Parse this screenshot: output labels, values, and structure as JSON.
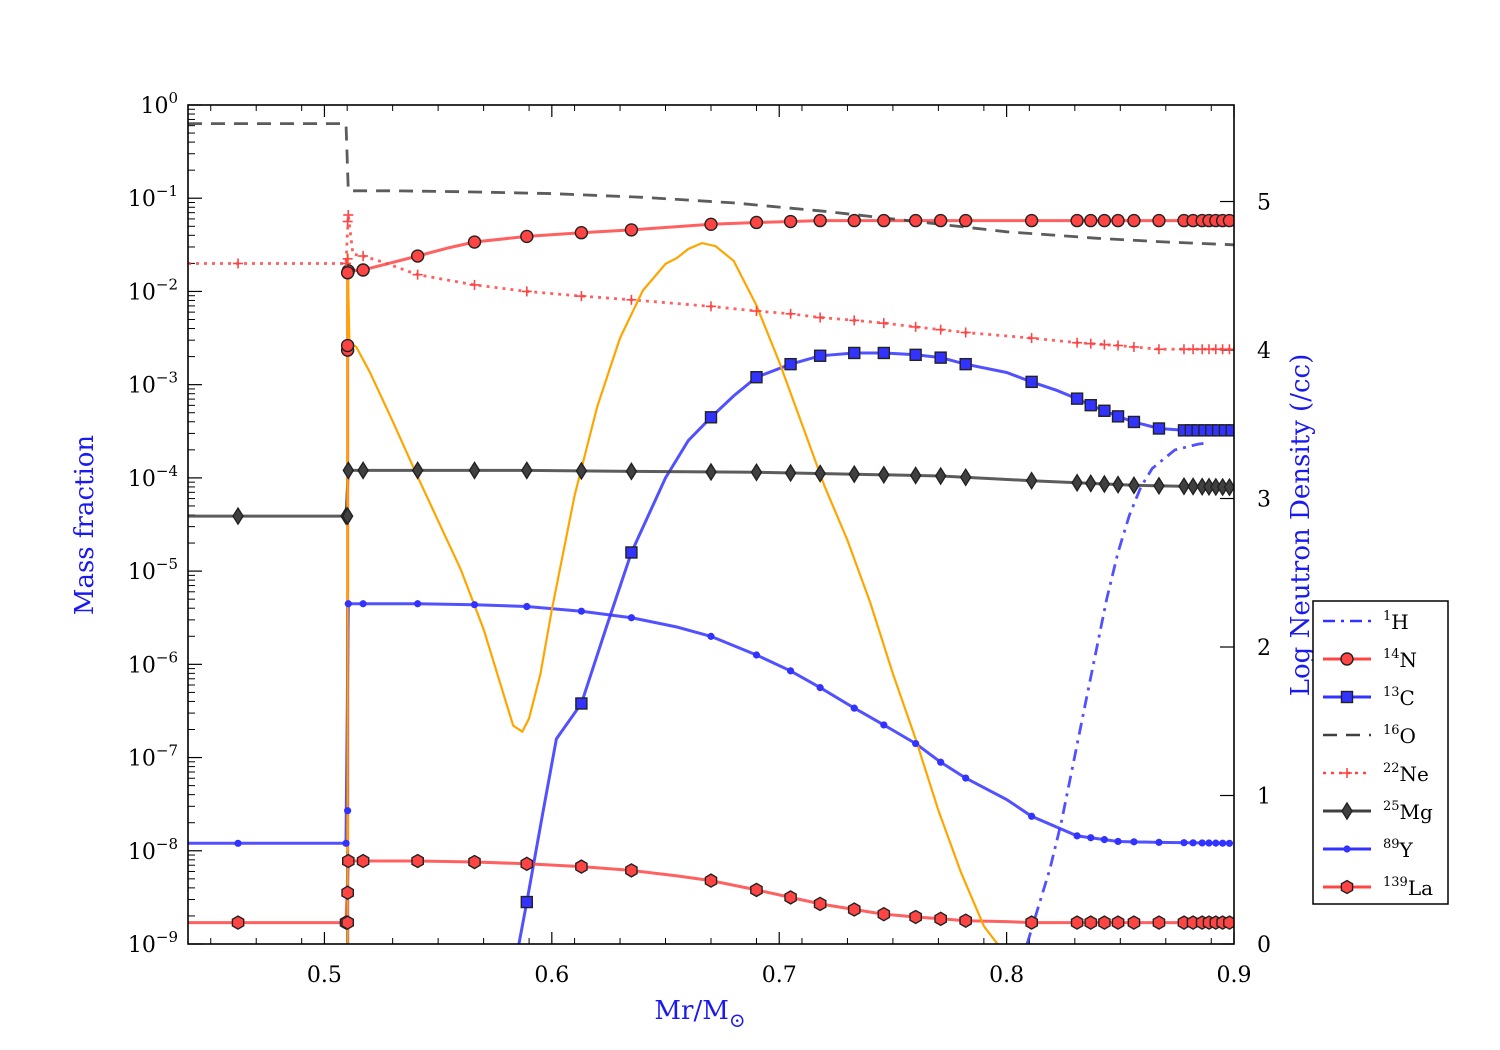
{
  "chart_data": {
    "type": "line",
    "xlabel": "Mr/M",
    "xlabel_symbol": "⊙",
    "ylabel": "Mass fraction",
    "y2label": "Log Neutron Density (/cc)",
    "xlim": [
      0.44,
      0.9
    ],
    "ylim_log10": [
      -9,
      0
    ],
    "y2lim": [
      0,
      5.65
    ],
    "x_ticks": [
      "0.5",
      "0.6",
      "0.7",
      "0.8",
      "0.9"
    ],
    "x_tick_values": [
      0.5,
      0.6,
      0.7,
      0.8,
      0.9
    ],
    "y_tick_exponents": [
      "0",
      "−1",
      "−2",
      "−3",
      "−4",
      "−5",
      "−6",
      "−7",
      "−8",
      "−9"
    ],
    "y_tick_base": "10",
    "y2_ticks": [
      "0",
      "1",
      "2",
      "3",
      "4",
      "5"
    ],
    "legend_position": "right",
    "colors": {
      "red": "#ff4444",
      "blue": "#3333ff",
      "gray": "#404040",
      "orange": "#ffa500",
      "y2label": "#1a1aee"
    },
    "series": [
      {
        "name": "1H",
        "mass": "1",
        "element": "H",
        "color": "#3333ff",
        "style": "dashdot",
        "marker": "none",
        "x": [
          0.809,
          0.814,
          0.819,
          0.824,
          0.829,
          0.834,
          0.839,
          0.844,
          0.849,
          0.854,
          0.859,
          0.864,
          0.869,
          0.874,
          0.879,
          0.884,
          0.889
        ],
        "log_y": [
          -9.0,
          -8.6,
          -8.2,
          -7.7,
          -7.1,
          -6.5,
          -5.9,
          -5.3,
          -4.8,
          -4.4,
          -4.1,
          -3.9,
          -3.8,
          -3.7,
          -3.67,
          -3.64,
          -3.62
        ]
      },
      {
        "name": "14N",
        "mass": "14",
        "element": "N",
        "color": "#ff4444",
        "style": "solid",
        "marker": "circle",
        "x": [
          0.5105,
          0.517,
          0.525,
          0.541,
          0.555,
          0.566,
          0.589,
          0.613,
          0.635,
          0.67,
          0.69,
          0.705,
          0.718,
          0.733,
          0.746,
          0.76,
          0.771,
          0.782,
          0.811,
          0.831,
          0.837,
          0.843,
          0.849,
          0.856,
          0.867,
          0.875,
          0.878,
          0.881,
          0.884,
          0.887,
          0.89,
          0.893,
          0.896,
          0.899
        ],
        "log_y": [
          -1.78,
          -1.77,
          -1.72,
          -1.62,
          -1.53,
          -1.47,
          -1.41,
          -1.37,
          -1.34,
          -1.28,
          -1.26,
          -1.25,
          -1.24,
          -1.24,
          -1.24,
          -1.24,
          -1.24,
          -1.24,
          -1.24,
          -1.24,
          -1.24,
          -1.24,
          -1.24,
          -1.24,
          -1.24,
          -1.24,
          -1.24,
          -1.24,
          -1.24,
          -1.24,
          -1.24,
          -1.24,
          -1.24,
          -1.24
        ],
        "markers_x": [
          0.5105,
          0.517,
          0.541,
          0.566,
          0.589,
          0.613,
          0.635,
          0.67,
          0.69,
          0.705,
          0.718,
          0.733,
          0.746,
          0.76,
          0.771,
          0.782,
          0.811,
          0.831,
          0.837,
          0.843,
          0.849,
          0.856,
          0.867,
          0.878,
          0.882,
          0.886,
          0.889,
          0.892,
          0.895,
          0.898
        ]
      },
      {
        "name": "13C",
        "mass": "13",
        "element": "C",
        "color": "#3333ff",
        "style": "solid",
        "marker": "square",
        "x": [
          0.5855,
          0.589,
          0.596,
          0.602,
          0.613,
          0.624,
          0.635,
          0.65,
          0.66,
          0.67,
          0.68,
          0.69,
          0.705,
          0.718,
          0.733,
          0.746,
          0.76,
          0.771,
          0.782,
          0.8,
          0.811,
          0.822,
          0.831,
          0.837,
          0.843,
          0.849,
          0.856,
          0.867,
          0.878,
          0.89,
          0.899
        ],
        "log_y": [
          -9.0,
          -8.55,
          -7.6,
          -6.8,
          -6.42,
          -5.6,
          -4.8,
          -4.0,
          -3.6,
          -3.35,
          -3.12,
          -2.92,
          -2.78,
          -2.69,
          -2.66,
          -2.66,
          -2.68,
          -2.71,
          -2.78,
          -2.87,
          -2.97,
          -3.06,
          -3.15,
          -3.22,
          -3.28,
          -3.34,
          -3.4,
          -3.47,
          -3.49,
          -3.49,
          -3.49
        ],
        "markers_x": [
          0.589,
          0.613,
          0.635,
          0.67,
          0.69,
          0.705,
          0.718,
          0.733,
          0.746,
          0.76,
          0.771,
          0.782,
          0.811,
          0.831,
          0.837,
          0.843,
          0.849,
          0.856,
          0.867,
          0.878,
          0.881,
          0.884,
          0.887,
          0.89,
          0.893,
          0.896,
          0.899
        ]
      },
      {
        "name": "16O",
        "mass": "16",
        "element": "O",
        "color": "#404040",
        "style": "dashed",
        "marker": "none",
        "x": [
          0.44,
          0.5095,
          0.5095,
          0.5105,
          0.53,
          0.56,
          0.6,
          0.64,
          0.68,
          0.72,
          0.76,
          0.8,
          0.84,
          0.87,
          0.9
        ],
        "log_y": [
          -0.2,
          -0.2,
          -0.2,
          -0.92,
          -0.92,
          -0.93,
          -0.95,
          -0.99,
          -1.05,
          -1.14,
          -1.25,
          -1.36,
          -1.43,
          -1.47,
          -1.5
        ]
      },
      {
        "name": "22Ne",
        "mass": "22",
        "element": "Ne",
        "color": "#ff4444",
        "style": "dotted",
        "marker": "plus",
        "x": [
          0.44,
          0.462,
          0.5095,
          0.5105,
          0.5125,
          0.517,
          0.525,
          0.541,
          0.566,
          0.589,
          0.613,
          0.635,
          0.67,
          0.69,
          0.705,
          0.718,
          0.733,
          0.746,
          0.76,
          0.771,
          0.782,
          0.811,
          0.831,
          0.849,
          0.867,
          0.899
        ],
        "log_y": [
          -1.7,
          -1.7,
          -1.7,
          -1.18,
          -1.6,
          -1.62,
          -1.68,
          -1.82,
          -1.93,
          -2.0,
          -2.05,
          -2.09,
          -2.16,
          -2.21,
          -2.24,
          -2.28,
          -2.31,
          -2.34,
          -2.38,
          -2.41,
          -2.44,
          -2.5,
          -2.55,
          -2.58,
          -2.62,
          -2.62
        ],
        "markers_x": [
          0.462,
          0.5095,
          0.5105,
          0.517,
          0.541,
          0.566,
          0.589,
          0.613,
          0.635,
          0.67,
          0.69,
          0.705,
          0.718,
          0.733,
          0.746,
          0.76,
          0.771,
          0.782,
          0.811,
          0.831,
          0.837,
          0.843,
          0.849,
          0.856,
          0.867,
          0.878,
          0.882,
          0.886,
          0.889,
          0.892,
          0.895,
          0.898
        ]
      },
      {
        "name": "25Mg",
        "mass": "25",
        "element": "Mg",
        "color": "#404040",
        "style": "solid",
        "marker": "diamond",
        "x": [
          0.44,
          0.462,
          0.5095,
          0.5105,
          0.517,
          0.541,
          0.589,
          0.635,
          0.69,
          0.733,
          0.771,
          0.811,
          0.856,
          0.899
        ],
        "log_y": [
          -4.41,
          -4.41,
          -4.41,
          -3.92,
          -3.92,
          -3.92,
          -3.92,
          -3.93,
          -3.94,
          -3.96,
          -3.98,
          -4.03,
          -4.08,
          -4.1
        ],
        "markers_x": [
          0.462,
          0.5095,
          0.5105,
          0.517,
          0.541,
          0.566,
          0.589,
          0.613,
          0.635,
          0.67,
          0.69,
          0.705,
          0.718,
          0.733,
          0.746,
          0.76,
          0.771,
          0.782,
          0.811,
          0.831,
          0.837,
          0.843,
          0.849,
          0.856,
          0.867,
          0.878,
          0.882,
          0.886,
          0.889,
          0.892,
          0.895,
          0.898
        ]
      },
      {
        "name": "89Y",
        "mass": "89",
        "element": "Y",
        "color": "#3333ff",
        "style": "solid",
        "marker": "dot",
        "x": [
          0.44,
          0.462,
          0.5095,
          0.5105,
          0.517,
          0.541,
          0.566,
          0.589,
          0.613,
          0.635,
          0.655,
          0.67,
          0.69,
          0.705,
          0.718,
          0.733,
          0.746,
          0.76,
          0.771,
          0.782,
          0.8,
          0.811,
          0.831,
          0.849,
          0.867,
          0.899
        ],
        "log_y": [
          -7.92,
          -7.92,
          -7.92,
          -5.35,
          -5.35,
          -5.35,
          -5.36,
          -5.38,
          -5.43,
          -5.5,
          -5.6,
          -5.7,
          -5.9,
          -6.07,
          -6.25,
          -6.47,
          -6.65,
          -6.85,
          -7.05,
          -7.22,
          -7.45,
          -7.63,
          -7.84,
          -7.9,
          -7.91,
          -7.92
        ],
        "markers_x": [
          0.462,
          0.5095,
          0.5105,
          0.517,
          0.541,
          0.566,
          0.589,
          0.613,
          0.635,
          0.67,
          0.69,
          0.705,
          0.718,
          0.733,
          0.746,
          0.76,
          0.771,
          0.782,
          0.811,
          0.831,
          0.837,
          0.843,
          0.849,
          0.856,
          0.867,
          0.878,
          0.882,
          0.886,
          0.889,
          0.892,
          0.895,
          0.898
        ]
      },
      {
        "name": "139La",
        "mass": "139",
        "element": "La",
        "color": "#ff4444",
        "style": "solid",
        "marker": "hexagon",
        "x": [
          0.44,
          0.462,
          0.5095,
          0.5105,
          0.517,
          0.541,
          0.566,
          0.589,
          0.613,
          0.635,
          0.655,
          0.67,
          0.69,
          0.705,
          0.718,
          0.733,
          0.746,
          0.76,
          0.771,
          0.782,
          0.8,
          0.811,
          0.831,
          0.867,
          0.899
        ],
        "log_y": [
          -8.77,
          -8.77,
          -8.77,
          -8.11,
          -8.11,
          -8.11,
          -8.12,
          -8.14,
          -8.17,
          -8.21,
          -8.27,
          -8.32,
          -8.42,
          -8.5,
          -8.57,
          -8.63,
          -8.68,
          -8.71,
          -8.73,
          -8.75,
          -8.76,
          -8.77,
          -8.77,
          -8.77,
          -8.77
        ],
        "markers_x": [
          0.462,
          0.5095,
          0.5105,
          0.517,
          0.541,
          0.566,
          0.589,
          0.613,
          0.635,
          0.67,
          0.69,
          0.705,
          0.718,
          0.733,
          0.746,
          0.76,
          0.771,
          0.782,
          0.811,
          0.831,
          0.837,
          0.843,
          0.849,
          0.856,
          0.867,
          0.878,
          0.882,
          0.886,
          0.889,
          0.892,
          0.895,
          0.898
        ]
      }
    ],
    "spike": {
      "x": 0.5102,
      "14N_log_y": -2.63,
      "13C_log_y": -8.0,
      "25Mg_log_y": -4.41,
      "89Y_log_y": -7.57,
      "139La_log_y": [
        -8.45,
        -8.77
      ],
      "22Ne_log_y": -1.7
    },
    "neutron_density": {
      "name": "Log Neutron Density",
      "color": "#ffa500",
      "x": [
        0.5102,
        0.511,
        0.514,
        0.52,
        0.53,
        0.54,
        0.55,
        0.56,
        0.57,
        0.578,
        0.583,
        0.587,
        0.59,
        0.595,
        0.6,
        0.61,
        0.62,
        0.63,
        0.64,
        0.65,
        0.655,
        0.66,
        0.666,
        0.672,
        0.68,
        0.69,
        0.7,
        0.71,
        0.72,
        0.73,
        0.74,
        0.75,
        0.76,
        0.77,
        0.78,
        0.79,
        0.796
      ],
      "y": [
        4.65,
        4.05,
        4.02,
        3.85,
        3.52,
        3.18,
        2.85,
        2.52,
        2.12,
        1.72,
        1.47,
        1.43,
        1.52,
        1.82,
        2.25,
        3.02,
        3.62,
        4.08,
        4.4,
        4.58,
        4.62,
        4.68,
        4.72,
        4.7,
        4.6,
        4.3,
        3.92,
        3.5,
        3.08,
        2.72,
        2.3,
        1.82,
        1.38,
        0.9,
        0.48,
        0.12,
        0.0
      ]
    }
  }
}
